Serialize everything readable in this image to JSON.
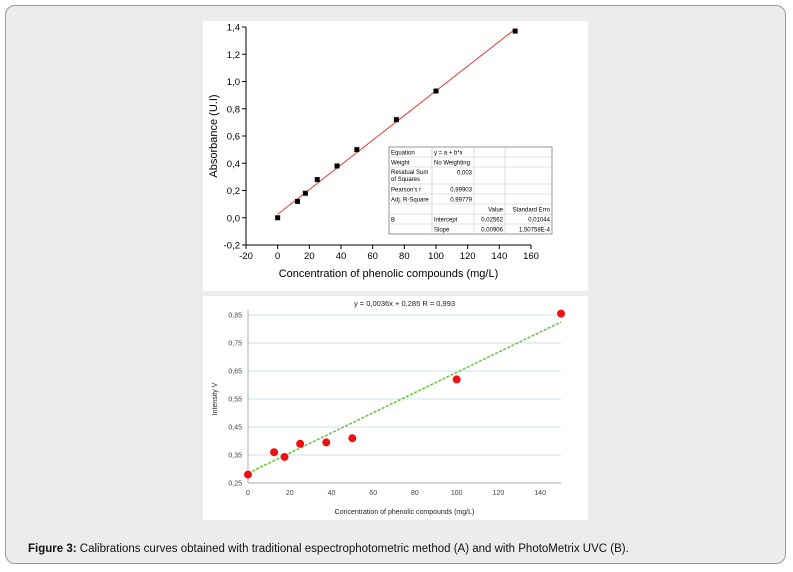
{
  "caption": {
    "label": "Figure 3:",
    "text": " Calibrations curves obtained with traditional espectrophotometric method (A) and with PhotoMetrix UVC (B)."
  },
  "chart_data": [
    {
      "type": "scatter",
      "title": "",
      "xlabel": "Concentration of phenolic compounds (mg/L)",
      "ylabel": "Absorbance (U.I)",
      "xlim": [
        -20,
        160
      ],
      "ylim": [
        -0.2,
        1.4
      ],
      "xticks": [
        "-20",
        "0",
        "20",
        "40",
        "60",
        "80",
        "100",
        "120",
        "140",
        "160"
      ],
      "yticks": [
        "-0,2",
        "0,0",
        "0,2",
        "0,4",
        "0,6",
        "0,8",
        "1,0",
        "1,2",
        "1,4"
      ],
      "colors": {
        "points": "#000000",
        "fit": "#e8392e"
      },
      "series": [
        {
          "x": [
            0,
            12.5,
            17.5,
            25,
            37.5,
            50,
            75,
            100,
            150
          ],
          "y": [
            0.0,
            0.12,
            0.18,
            0.28,
            0.38,
            0.5,
            0.72,
            0.93,
            1.37
          ]
        }
      ],
      "fit": {
        "intercept": 0.02562,
        "slope": 0.00906,
        "x_range": [
          0,
          150
        ]
      },
      "stats_table": {
        "rows": [
          [
            "Equation",
            "y = a + b*x",
            "",
            ""
          ],
          [
            "Weight",
            "No Weighting",
            "",
            ""
          ],
          [
            "Residual Sum of Squares",
            "0,003",
            "",
            ""
          ],
          [
            "Pearson's r",
            "0,99903",
            "",
            ""
          ],
          [
            "Adj. R-Square",
            "0,99779",
            "",
            ""
          ],
          [
            "",
            "",
            "Value",
            "Standard Erro"
          ],
          [
            "B",
            "Intercept",
            "0,02562",
            "0,01044"
          ],
          [
            "",
            "Slope",
            "0,00906",
            "1,50758E-4"
          ]
        ]
      }
    },
    {
      "type": "scatter",
      "title": "y = 0,0036x + 0,285   R = 0,993",
      "xlabel": "Concentration of phenolic compounds (mg/L)",
      "ylabel": "Intensity V",
      "xlim": [
        0,
        150
      ],
      "ylim": [
        0.25,
        0.85
      ],
      "xticks": [
        "0",
        "20",
        "40",
        "60",
        "80",
        "100",
        "120",
        "140"
      ],
      "yticks": [
        "0,25",
        "0,35",
        "0,45",
        "0,55",
        "0,65",
        "0,75",
        "0,85"
      ],
      "grid": true,
      "colors": {
        "points": "#ee1111",
        "fit": "#6cc644",
        "grid": "#bcd8ee"
      },
      "series": [
        {
          "x": [
            0,
            12.5,
            17.5,
            25,
            37.5,
            50,
            100,
            150
          ],
          "y": [
            0.28,
            0.36,
            0.343,
            0.39,
            0.395,
            0.41,
            0.62,
            0.855
          ]
        }
      ],
      "fit": {
        "intercept": 0.285,
        "slope": 0.0036,
        "x_range": [
          0,
          150
        ]
      }
    }
  ]
}
